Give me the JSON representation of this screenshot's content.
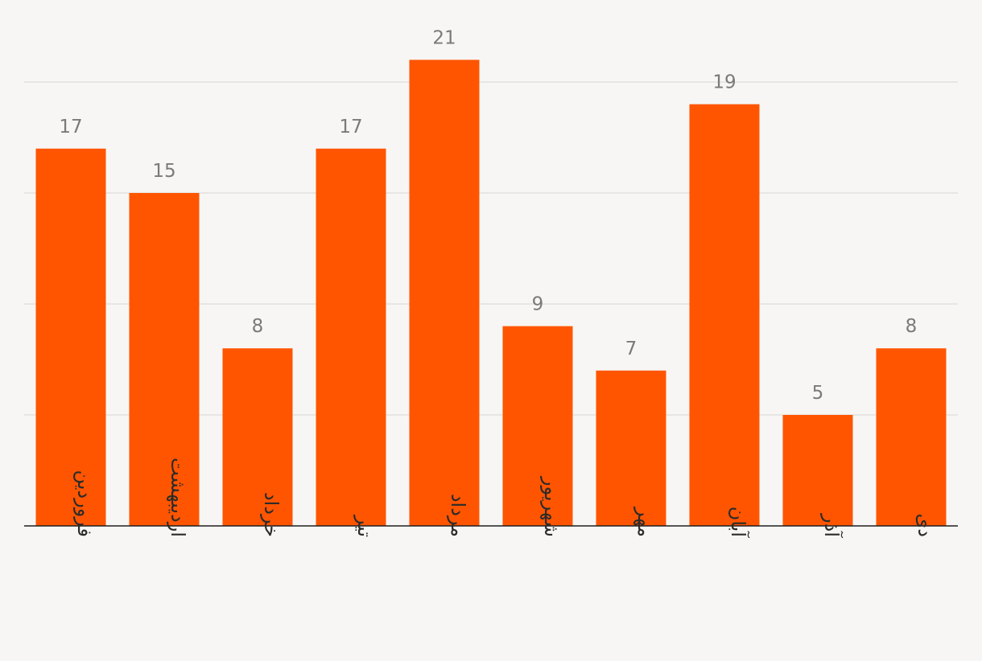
{
  "chart_data": {
    "type": "bar",
    "title": "",
    "xlabel": "",
    "ylabel": "",
    "categories": [
      "فروردین",
      "اردیبهشت",
      "خرداد",
      "تیر",
      "مرداد",
      "شهریور",
      "مهر",
      "آبان",
      "آذر",
      "دی"
    ],
    "values": [
      17,
      15,
      8,
      17,
      21,
      9,
      7,
      19,
      5,
      8
    ],
    "ylim": [
      0,
      20
    ],
    "grid": true,
    "bar_color": "#ff5500"
  }
}
